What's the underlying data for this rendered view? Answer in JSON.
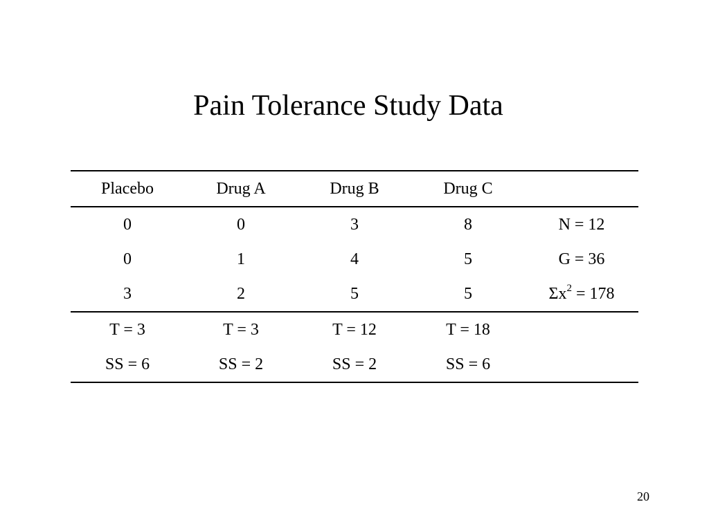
{
  "slide": {
    "title": "Pain Tolerance Study Data",
    "page_number": "20"
  },
  "table": {
    "headers": [
      "Placebo",
      "Drug A",
      "Drug B",
      "Drug C",
      ""
    ],
    "data_rows": [
      [
        "0",
        "0",
        "3",
        "8"
      ],
      [
        "0",
        "1",
        "4",
        "5"
      ],
      [
        "3",
        "2",
        "5",
        "5"
      ]
    ],
    "summary": {
      "n": "N = 12",
      "g": "G = 36",
      "sum_x2_prefix": "Σx",
      "sum_x2_exponent": "2",
      "sum_x2_suffix": " = 178"
    },
    "totals": [
      "T = 3",
      "T = 3",
      "T = 12",
      "T = 18"
    ],
    "ss": [
      "SS = 6",
      "SS = 2",
      "SS = 2",
      "SS = 6"
    ]
  }
}
